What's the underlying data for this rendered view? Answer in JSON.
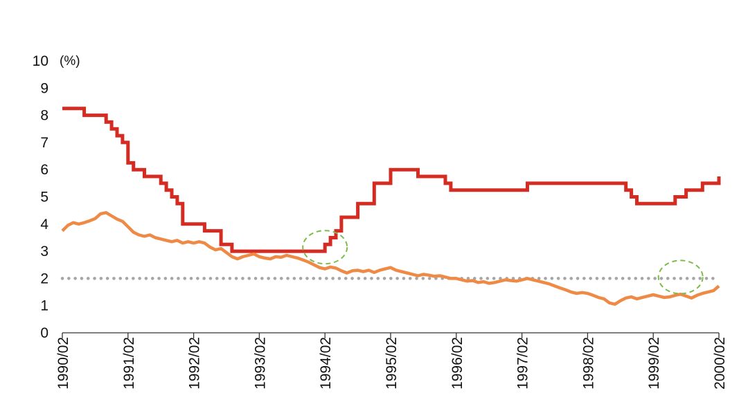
{
  "chart_data": {
    "type": "line",
    "unit_label": "(%)",
    "ylim": [
      0,
      10
    ],
    "y_ticks": [
      "0",
      "1",
      "2",
      "3",
      "4",
      "5",
      "6",
      "7",
      "8",
      "9",
      "10"
    ],
    "x_range": [
      "1990-02",
      "2000-02"
    ],
    "x_ticks": [
      "1990/02",
      "1991/02",
      "1992/02",
      "1993/02",
      "1994/02",
      "1995/02",
      "1996/02",
      "1997/02",
      "1998/02",
      "1999/02",
      "2000/02"
    ],
    "grid": false,
    "reference_line": {
      "y": 2,
      "color": "#a6a6a6",
      "style": "dotted"
    },
    "highlights": [
      {
        "x": "1994-02",
        "y": 3.15,
        "color": "#7dbb4a",
        "style": "dashed ellipse"
      },
      {
        "x": "1999-07",
        "y": 2.05,
        "color": "#7dbb4a",
        "style": "dashed ellipse"
      }
    ],
    "series": [
      {
        "color": "#d42b22",
        "step": true,
        "points": [
          [
            "1990-02",
            8.25
          ],
          [
            "1990-06",
            8.0
          ],
          [
            "1990-10",
            7.75
          ],
          [
            "1990-11",
            7.5
          ],
          [
            "1990-12",
            7.25
          ],
          [
            "1991-01",
            7.0
          ],
          [
            "1991-02",
            6.25
          ],
          [
            "1991-03",
            6.0
          ],
          [
            "1991-05",
            5.75
          ],
          [
            "1991-08",
            5.5
          ],
          [
            "1991-09",
            5.25
          ],
          [
            "1991-10",
            5.0
          ],
          [
            "1991-11",
            4.75
          ],
          [
            "1991-12",
            4.0
          ],
          [
            "1992-04",
            3.75
          ],
          [
            "1992-07",
            3.25
          ],
          [
            "1992-09",
            3.0
          ],
          [
            "1994-02",
            3.25
          ],
          [
            "1994-03",
            3.5
          ],
          [
            "1994-04",
            3.75
          ],
          [
            "1994-05",
            4.25
          ],
          [
            "1994-08",
            4.75
          ],
          [
            "1994-11",
            5.5
          ],
          [
            "1995-02",
            6.0
          ],
          [
            "1995-07",
            5.75
          ],
          [
            "1995-12",
            5.5
          ],
          [
            "1996-01",
            5.25
          ],
          [
            "1997-03",
            5.5
          ],
          [
            "1998-09",
            5.25
          ],
          [
            "1998-10",
            5.0
          ],
          [
            "1998-11",
            4.75
          ],
          [
            "1999-06",
            5.0
          ],
          [
            "1999-08",
            5.25
          ],
          [
            "1999-11",
            5.5
          ],
          [
            "2000-02",
            5.75
          ]
        ]
      },
      {
        "color": "#ee8a45",
        "step": false,
        "points": [
          [
            "1990-02",
            3.75
          ],
          [
            "1990-03",
            3.95
          ],
          [
            "1990-04",
            4.05
          ],
          [
            "1990-05",
            4.0
          ],
          [
            "1990-06",
            4.05
          ],
          [
            "1990-07",
            4.12
          ],
          [
            "1990-08",
            4.2
          ],
          [
            "1990-09",
            4.38
          ],
          [
            "1990-10",
            4.42
          ],
          [
            "1990-11",
            4.3
          ],
          [
            "1990-12",
            4.18
          ],
          [
            "1991-01",
            4.1
          ],
          [
            "1991-02",
            3.9
          ],
          [
            "1991-03",
            3.7
          ],
          [
            "1991-04",
            3.6
          ],
          [
            "1991-05",
            3.55
          ],
          [
            "1991-06",
            3.6
          ],
          [
            "1991-07",
            3.5
          ],
          [
            "1991-08",
            3.45
          ],
          [
            "1991-09",
            3.4
          ],
          [
            "1991-10",
            3.35
          ],
          [
            "1991-11",
            3.4
          ],
          [
            "1991-12",
            3.3
          ],
          [
            "1992-01",
            3.35
          ],
          [
            "1992-02",
            3.3
          ],
          [
            "1992-03",
            3.35
          ],
          [
            "1992-04",
            3.3
          ],
          [
            "1992-05",
            3.15
          ],
          [
            "1992-06",
            3.05
          ],
          [
            "1992-07",
            3.1
          ],
          [
            "1992-08",
            2.95
          ],
          [
            "1992-09",
            2.8
          ],
          [
            "1992-10",
            2.72
          ],
          [
            "1992-11",
            2.8
          ],
          [
            "1992-12",
            2.85
          ],
          [
            "1993-01",
            2.9
          ],
          [
            "1993-02",
            2.8
          ],
          [
            "1993-03",
            2.75
          ],
          [
            "1993-04",
            2.72
          ],
          [
            "1993-05",
            2.8
          ],
          [
            "1993-06",
            2.78
          ],
          [
            "1993-07",
            2.85
          ],
          [
            "1993-08",
            2.8
          ],
          [
            "1993-09",
            2.75
          ],
          [
            "1993-10",
            2.68
          ],
          [
            "1993-11",
            2.6
          ],
          [
            "1993-12",
            2.5
          ],
          [
            "1994-01",
            2.4
          ],
          [
            "1994-02",
            2.35
          ],
          [
            "1994-03",
            2.42
          ],
          [
            "1994-04",
            2.38
          ],
          [
            "1994-05",
            2.28
          ],
          [
            "1994-06",
            2.2
          ],
          [
            "1994-07",
            2.28
          ],
          [
            "1994-08",
            2.3
          ],
          [
            "1994-09",
            2.25
          ],
          [
            "1994-10",
            2.3
          ],
          [
            "1994-11",
            2.22
          ],
          [
            "1994-12",
            2.3
          ],
          [
            "1995-01",
            2.35
          ],
          [
            "1995-02",
            2.4
          ],
          [
            "1995-03",
            2.3
          ],
          [
            "1995-04",
            2.25
          ],
          [
            "1995-05",
            2.2
          ],
          [
            "1995-06",
            2.15
          ],
          [
            "1995-07",
            2.1
          ],
          [
            "1995-08",
            2.15
          ],
          [
            "1995-09",
            2.12
          ],
          [
            "1995-10",
            2.08
          ],
          [
            "1995-11",
            2.1
          ],
          [
            "1995-12",
            2.05
          ],
          [
            "1996-01",
            2.0
          ],
          [
            "1996-02",
            2.0
          ],
          [
            "1996-03",
            1.95
          ],
          [
            "1996-04",
            1.9
          ],
          [
            "1996-05",
            1.92
          ],
          [
            "1996-06",
            1.85
          ],
          [
            "1996-07",
            1.88
          ],
          [
            "1996-08",
            1.82
          ],
          [
            "1996-09",
            1.85
          ],
          [
            "1996-10",
            1.9
          ],
          [
            "1996-11",
            1.95
          ],
          [
            "1996-12",
            1.92
          ],
          [
            "1997-01",
            1.9
          ],
          [
            "1997-02",
            1.95
          ],
          [
            "1997-03",
            2.0
          ],
          [
            "1997-04",
            1.95
          ],
          [
            "1997-05",
            1.9
          ],
          [
            "1997-06",
            1.85
          ],
          [
            "1997-07",
            1.8
          ],
          [
            "1997-08",
            1.72
          ],
          [
            "1997-09",
            1.65
          ],
          [
            "1997-10",
            1.58
          ],
          [
            "1997-11",
            1.5
          ],
          [
            "1997-12",
            1.45
          ],
          [
            "1998-01",
            1.48
          ],
          [
            "1998-02",
            1.45
          ],
          [
            "1998-03",
            1.38
          ],
          [
            "1998-04",
            1.3
          ],
          [
            "1998-05",
            1.25
          ],
          [
            "1998-06",
            1.1
          ],
          [
            "1998-07",
            1.05
          ],
          [
            "1998-08",
            1.18
          ],
          [
            "1998-09",
            1.28
          ],
          [
            "1998-10",
            1.32
          ],
          [
            "1998-11",
            1.25
          ],
          [
            "1998-12",
            1.3
          ],
          [
            "1999-01",
            1.35
          ],
          [
            "1999-02",
            1.4
          ],
          [
            "1999-03",
            1.35
          ],
          [
            "1999-04",
            1.3
          ],
          [
            "1999-05",
            1.32
          ],
          [
            "1999-06",
            1.38
          ],
          [
            "1999-07",
            1.42
          ],
          [
            "1999-08",
            1.35
          ],
          [
            "1999-09",
            1.28
          ],
          [
            "1999-10",
            1.38
          ],
          [
            "1999-11",
            1.45
          ],
          [
            "1999-12",
            1.5
          ],
          [
            "2000-01",
            1.55
          ],
          [
            "2000-02",
            1.72
          ]
        ]
      }
    ]
  }
}
